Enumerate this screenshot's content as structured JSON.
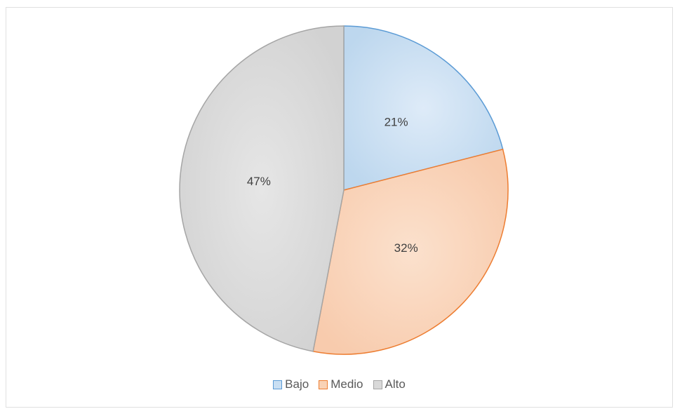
{
  "chart_data": {
    "type": "pie",
    "categories": [
      "Bajo",
      "Medio",
      "Alto"
    ],
    "values": [
      21,
      32,
      47
    ],
    "labels": [
      "21%",
      "32%",
      "47%"
    ],
    "legend_position": "bottom",
    "colors": {
      "fills": [
        "#c9dff3",
        "#f9d2b5",
        "#d9d9d9"
      ],
      "strokes": [
        "#5b9bd5",
        "#ed7d31",
        "#a5a5a5"
      ]
    }
  }
}
